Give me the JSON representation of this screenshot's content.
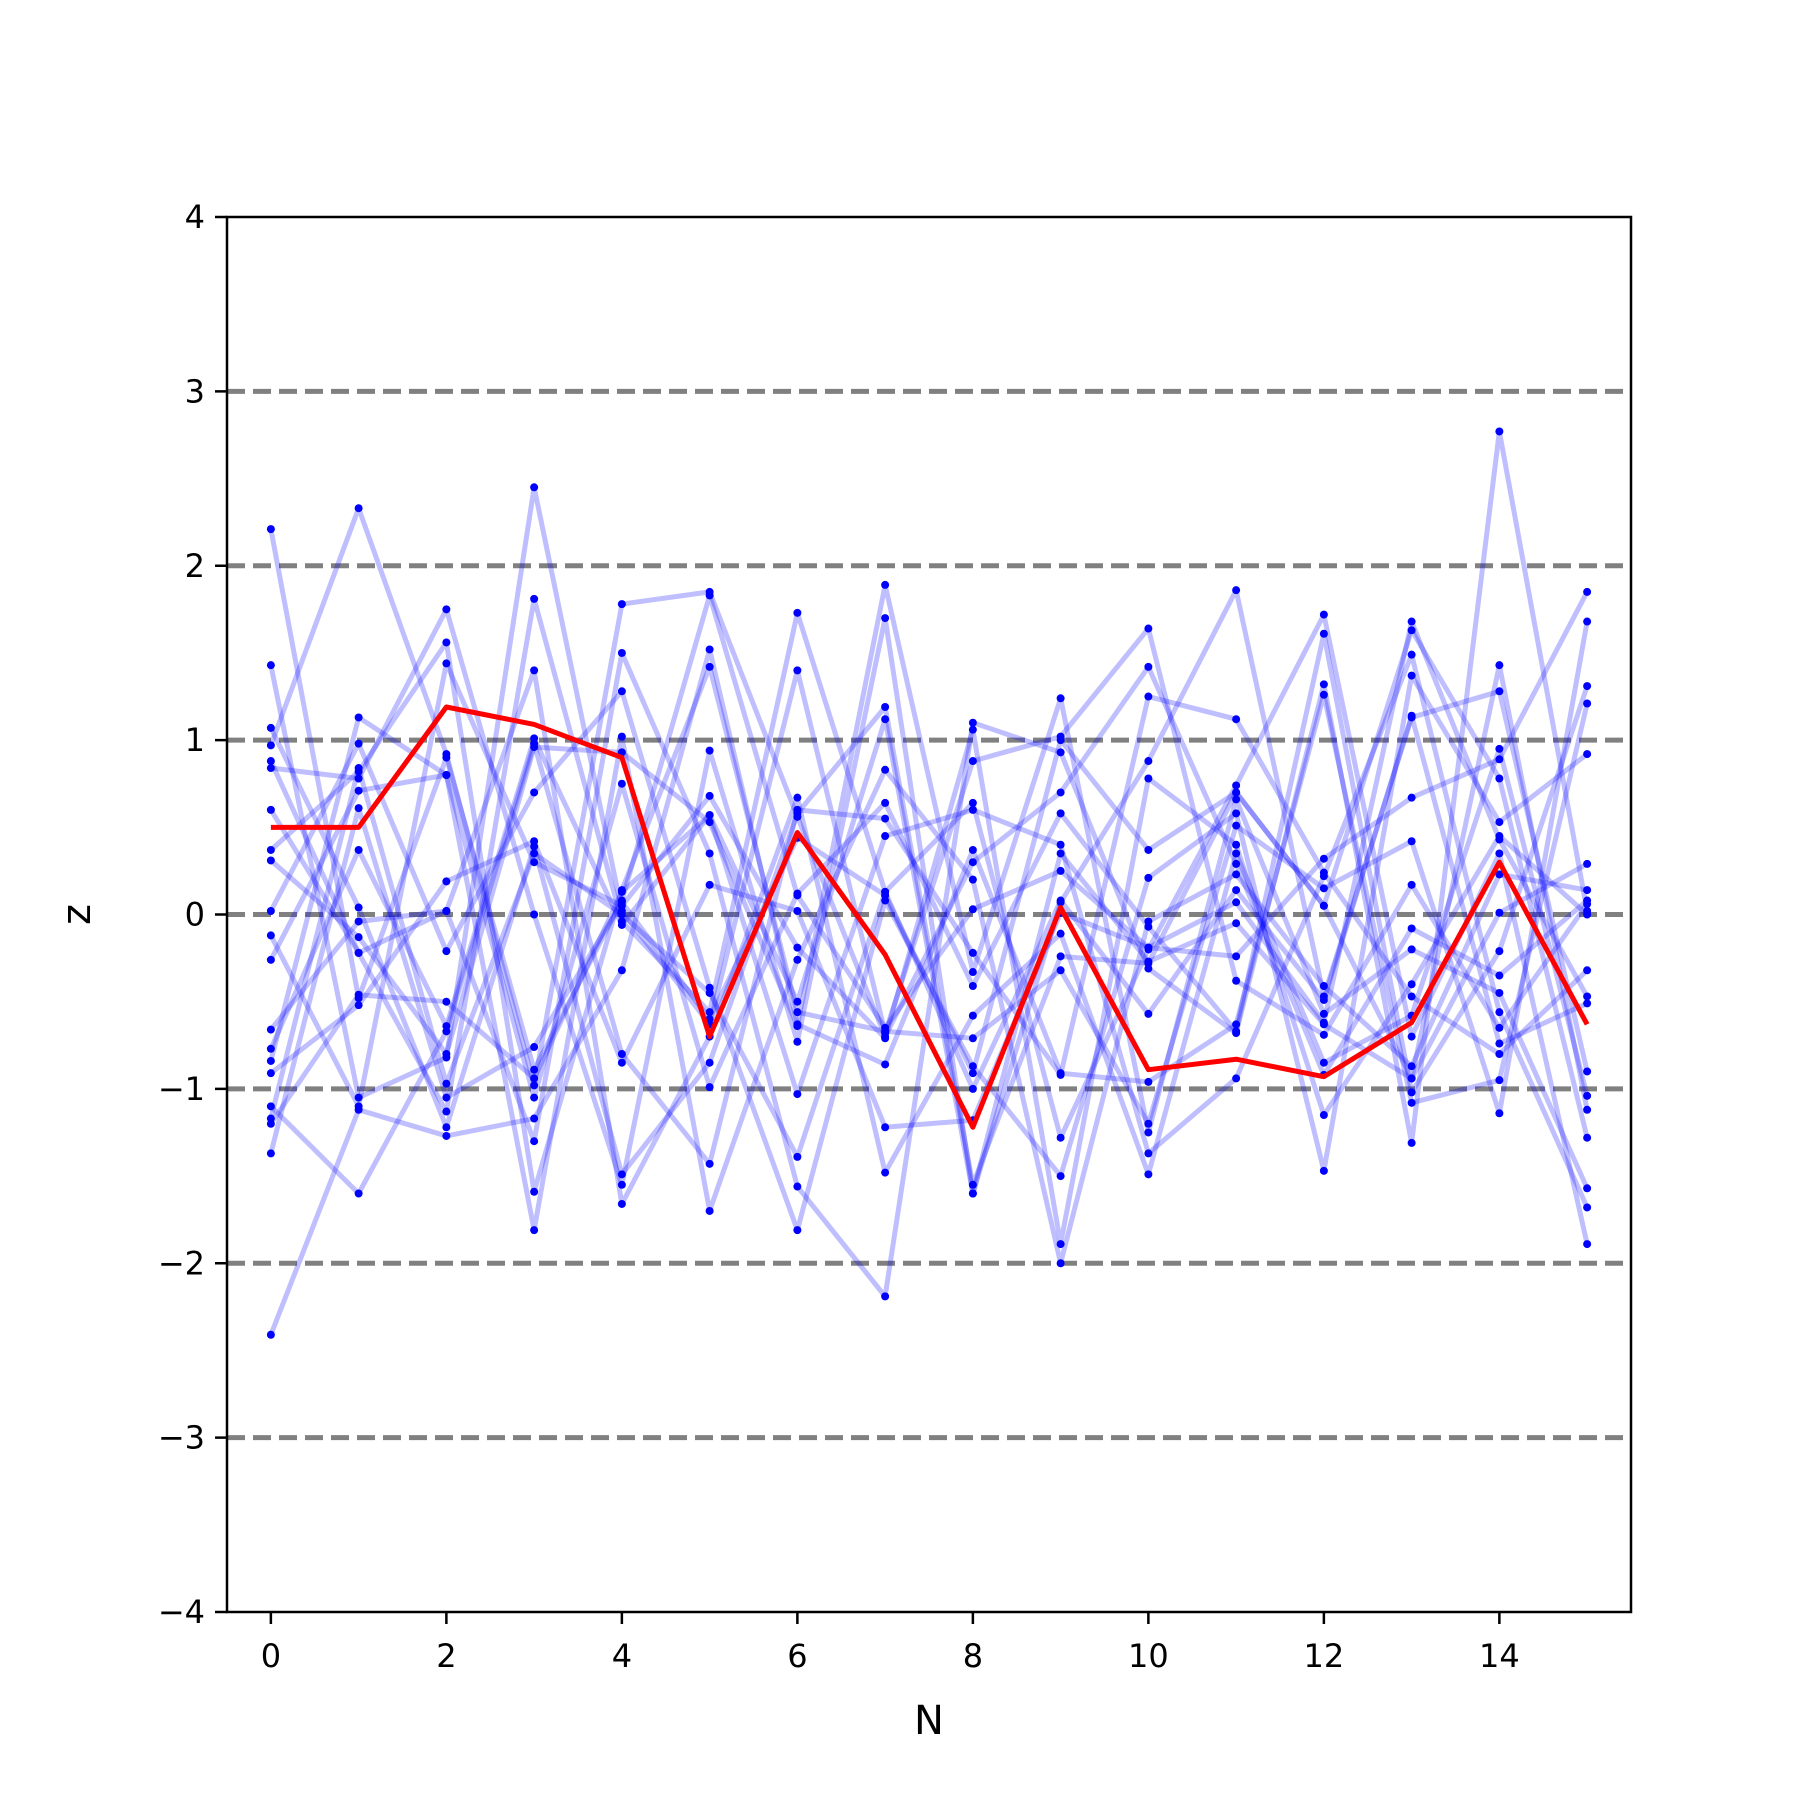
{
  "chart_data": {
    "type": "line",
    "xlabel": "N",
    "ylabel": "z",
    "xlim": [
      -0.5,
      15.5
    ],
    "ylim": [
      -4,
      4
    ],
    "xticks": [
      0,
      2,
      4,
      6,
      8,
      10,
      12,
      14
    ],
    "yticks": [
      -4,
      -3,
      -2,
      -1,
      0,
      1,
      2,
      3,
      4
    ],
    "reference_lines": {
      "values": [
        -3,
        -2,
        -1,
        0,
        1,
        2,
        3
      ],
      "style": "dashed",
      "color": "#808080"
    },
    "grid": false,
    "legend": "none",
    "x": [
      0,
      1,
      2,
      3,
      4,
      5,
      6,
      7,
      8,
      9,
      10,
      11,
      12,
      13,
      14,
      15
    ],
    "background_series": {
      "color": "#0000ff",
      "line_opacity": 0.25,
      "values": [
        [
          2.21,
          -0.48,
          0.9,
          -0.89,
          0.08,
          1.83,
          0.11,
          -0.65,
          0.03,
          0.25,
          -0.19,
          0.07,
          -0.62,
          1.68,
          0.43,
          -0.47
        ],
        [
          1.43,
          -1.05,
          -0.82,
          2.45,
          0.02,
          -0.63,
          1.4,
          -0.68,
          0.88,
          1.02,
          1.64,
          -0.38,
          -0.69,
          0.17,
          -0.65,
          0.06
        ],
        [
          1.07,
          0.04,
          -1.22,
          0.39,
          -1.49,
          -0.85,
          0.58,
          1.19,
          -1.55,
          -0.24,
          -0.28,
          0.7,
          0.05,
          1.63,
          0.78,
          -1.28
        ],
        [
          0.97,
          2.33,
          0.92,
          -0.98,
          1.78,
          1.85,
          0.56,
          -0.7,
          0.3,
          0.7,
          1.42,
          0.29,
          -0.92,
          -0.08,
          -0.35,
          0.08
        ],
        [
          0.88,
          -0.22,
          -1.13,
          1.81,
          -0.04,
          -0.56,
          1.73,
          0.13,
          0.64,
          -1.28,
          -0.2,
          0.74,
          1.72,
          -0.7,
          0.35,
          -1.89
        ],
        [
          0.84,
          0.78,
          1.75,
          0.0,
          -1.55,
          0.94,
          -0.73,
          1.7,
          -1.6,
          0.07,
          0.88,
          1.86,
          -0.47,
          1.13,
          1.28,
          -0.9
        ],
        [
          0.6,
          -0.22,
          0.02,
          -1.3,
          1.5,
          0.35,
          -1.56,
          -2.19,
          1.1,
          0.93,
          -0.31,
          -0.68,
          1.32,
          -1.31,
          2.77,
          0.02
        ],
        [
          0.37,
          0.82,
          1.56,
          -1.59,
          0.14,
          1.42,
          -0.56,
          -0.67,
          -0.71,
          -0.32,
          -1.2,
          0.51,
          0.15,
          0.42,
          -1.14,
          1.68
        ],
        [
          0.31,
          -0.13,
          -0.8,
          0.96,
          0.93,
          0.53,
          -0.64,
          1.89,
          -0.33,
          1.24,
          -1.25,
          0.66,
          -0.57,
          -0.2,
          -0.45,
          -1.57
        ],
        [
          0.02,
          0.98,
          -0.21,
          0.7,
          1.28,
          -0.42,
          -1.81,
          0.08,
          -0.87,
          -1.5,
          0.21,
          0.58,
          -1.47,
          1.37,
          0.53,
          0.92
        ],
        [
          -0.12,
          -1.1,
          1.44,
          0.3,
          0.05,
          0.68,
          -0.19,
          -0.71,
          1.06,
          -1.89,
          0.78,
          0.4,
          -1.15,
          -0.4,
          0.45,
          0.0
        ],
        [
          -0.26,
          0.71,
          0.8,
          -1.05,
          0.75,
          -0.99,
          0.12,
          0.64,
          -0.41,
          0.58,
          -0.07,
          -0.67,
          1.61,
          -1.02,
          -0.21,
          1.31
        ],
        [
          -0.66,
          -0.04,
          0.02,
          1.4,
          -1.66,
          -0.7,
          0.67,
          -1.48,
          -0.58,
          -0.11,
          -1.49,
          0.35,
          -0.85,
          -0.58,
          0.95,
          -1.04
        ],
        [
          -0.77,
          0.37,
          -0.64,
          1.01,
          -0.06,
          0.57,
          -1.03,
          0.45,
          0.6,
          0.4,
          -1.37,
          -0.94,
          0.22,
          1.49,
          -0.56,
          -1.68
        ],
        [
          -0.84,
          1.13,
          0.8,
          -1.81,
          1.02,
          -1.7,
          -0.26,
          0.83,
          0.2,
          -2.0,
          -0.04,
          0.23,
          -0.41,
          -0.87,
          0.23,
          0.14
        ],
        [
          -0.91,
          -0.52,
          0.19,
          0.42,
          -0.85,
          0.17,
          0.02,
          -1.22,
          -1.18,
          0.01,
          -0.19,
          -0.24,
          0.32,
          0.67,
          0.89,
          1.85
        ],
        [
          -1.1,
          -1.6,
          -0.67,
          0.98,
          -0.8,
          -1.43,
          0.6,
          0.55,
          -0.22,
          -0.92,
          1.25,
          1.12,
          0.24,
          -0.47,
          -0.8,
          -0.32
        ],
        [
          -1.17,
          0.84,
          -0.97,
          0.35,
          0.0,
          -0.45,
          -1.39,
          0.13,
          -1.0,
          0.08,
          -0.57,
          0.14,
          -0.49,
          1.14,
          -0.74,
          -0.51
        ],
        [
          -1.2,
          -0.46,
          -0.5,
          -0.94,
          0.13,
          0.57,
          -0.5,
          1.12,
          -1.6,
          0.35,
          -0.27,
          -0.05,
          -0.63,
          -0.94,
          0.01,
          0.29
        ],
        [
          -1.37,
          0.61,
          -1.05,
          -0.76,
          0.07,
          -0.6,
          0.44,
          0.11,
          -0.91,
          1.0,
          0.37,
          0.7,
          0.05,
          -0.94,
          1.43,
          -1.12
        ],
        [
          -2.41,
          -1.12,
          -1.27,
          -1.17,
          -0.32,
          1.52,
          -0.63,
          -0.86,
          0.37,
          -0.91,
          -0.96,
          -0.63,
          1.26,
          -1.08,
          -0.95,
          1.21
        ]
      ]
    },
    "highlight_series": {
      "color": "#ff0000",
      "values": [
        0.5,
        0.5,
        1.19,
        1.09,
        0.9,
        -0.7,
        0.47,
        -0.23,
        -1.22,
        0.04,
        -0.89,
        -0.83,
        -0.93,
        -0.62,
        0.3,
        -0.63
      ]
    }
  }
}
